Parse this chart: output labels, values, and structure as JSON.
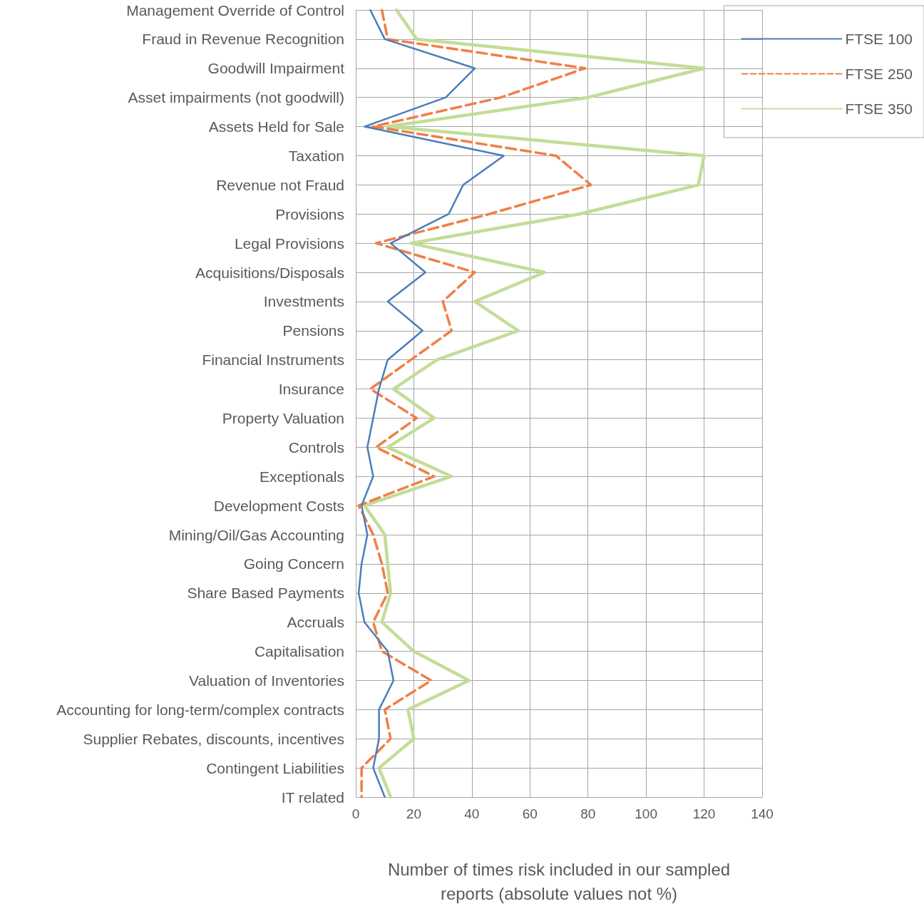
{
  "chart_data": {
    "type": "line",
    "orientation": "horizontal",
    "categories": [
      "Management Override of Control",
      "Fraud in Revenue Recognition",
      "Goodwill Impairment",
      "Asset impairments (not goodwill)",
      "Assets Held for Sale",
      "Taxation",
      "Revenue not Fraud",
      "Provisions",
      "Legal Provisions",
      "Acquisitions/Disposals",
      "Investments",
      "Pensions",
      "Financial Instruments",
      "Insurance",
      "Property Valuation",
      "Controls",
      "Exceptionals",
      "Development Costs",
      "Mining/Oil/Gas Accounting",
      "Going Concern",
      "Share Based Payments",
      "Accruals",
      "Capitalisation",
      "Valuation of Inventories",
      "Accounting for long-term/complex contracts",
      "Supplier Rebates, discounts, incentives",
      "Contingent Liabilities",
      "IT related"
    ],
    "series": [
      {
        "name": "FTSE 100",
        "color": "#4a7ebb",
        "line_style": "solid",
        "values": [
          5,
          10,
          41,
          31,
          3,
          51,
          37,
          32,
          12,
          24,
          11,
          23,
          11,
          8,
          6,
          4,
          6,
          2,
          4,
          2,
          1,
          3,
          11,
          13,
          8,
          8,
          6,
          10
        ]
      },
      {
        "name": "FTSE 250",
        "color": "#f07f45",
        "line_style": "dashed",
        "values": [
          9,
          11,
          79,
          50,
          6,
          69,
          81,
          46,
          7,
          41,
          30,
          33,
          19,
          5,
          21,
          7,
          27,
          1,
          6,
          9,
          11,
          6,
          9,
          26,
          10,
          12,
          2,
          2
        ]
      },
      {
        "name": "FTSE 350",
        "color": "#c3dd97",
        "line_style": "solid",
        "values": [
          14,
          21,
          120,
          80,
          11,
          120,
          118,
          77,
          19,
          65,
          41,
          56,
          28,
          13,
          27,
          11,
          33,
          3,
          10,
          11,
          12,
          9,
          20,
          39,
          18,
          20,
          8,
          12
        ]
      }
    ],
    "xlabel": "Number of times risk included in our sampled reports (absolute values not %)",
    "xlim": [
      0,
      140
    ],
    "xticks": [
      0,
      20,
      40,
      60,
      80,
      100,
      120,
      140
    ],
    "grid": true,
    "legend": "top right",
    "marker": "none"
  }
}
